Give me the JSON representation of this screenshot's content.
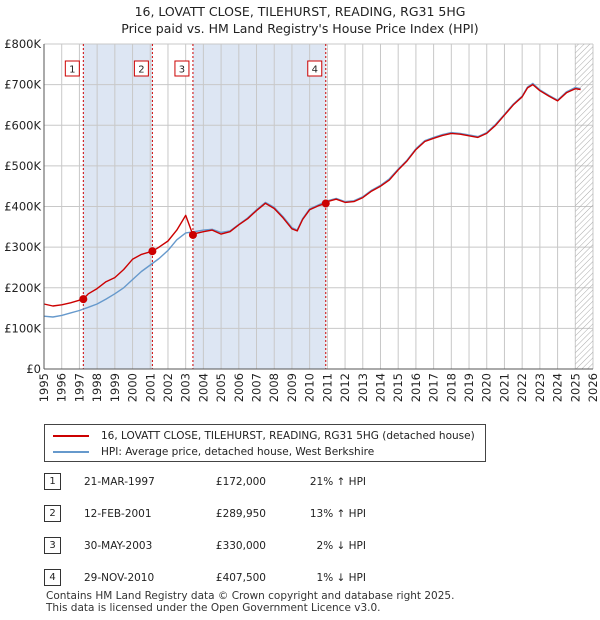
{
  "title": {
    "line1": "16, LOVATT CLOSE, TILEHURST, READING, RG31 5HG",
    "line2": "Price paid vs. HM Land Registry's House Price Index (HPI)"
  },
  "colors": {
    "property": "#cc0000",
    "hpi": "#6699cc",
    "shade": "#dde6f3",
    "grid": "#c8c8c8"
  },
  "legend": {
    "property_label": "16, LOVATT CLOSE, TILEHURST, READING, RG31 5HG (detached house)",
    "hpi_label": "HPI: Average price, detached house, West Berkshire"
  },
  "sales": [
    {
      "num": "1",
      "date": "21-MAR-1997",
      "price": "£172,000",
      "hpi": "21% ↑ HPI"
    },
    {
      "num": "2",
      "date": "12-FEB-2001",
      "price": "£289,950",
      "hpi": "13% ↑ HPI"
    },
    {
      "num": "3",
      "date": "30-MAY-2003",
      "price": "£330,000",
      "hpi": "2% ↓ HPI"
    },
    {
      "num": "4",
      "date": "29-NOV-2010",
      "price": "£407,500",
      "hpi": "1% ↓ HPI"
    }
  ],
  "footer": {
    "line1": "Contains HM Land Registry data © Crown copyright and database right 2025.",
    "line2": "This data is licensed under the Open Government Licence v3.0."
  },
  "chart_data": {
    "type": "line",
    "xlim": [
      1995,
      2026
    ],
    "ylim": [
      0,
      800000
    ],
    "x_ticks": [
      1995,
      1996,
      1997,
      1998,
      1999,
      2000,
      2001,
      2002,
      2003,
      2004,
      2005,
      2006,
      2007,
      2008,
      2009,
      2010,
      2011,
      2012,
      2013,
      2014,
      2015,
      2016,
      2017,
      2018,
      2019,
      2020,
      2021,
      2022,
      2023,
      2024,
      2025,
      2026
    ],
    "y_ticks": [
      {
        "value": 0,
        "label": "£0"
      },
      {
        "value": 100000,
        "label": "£100K"
      },
      {
        "value": 200000,
        "label": "£200K"
      },
      {
        "value": 300000,
        "label": "£300K"
      },
      {
        "value": 400000,
        "label": "£400K"
      },
      {
        "value": 500000,
        "label": "£500K"
      },
      {
        "value": 600000,
        "label": "£600K"
      },
      {
        "value": 700000,
        "label": "£700K"
      },
      {
        "value": 800000,
        "label": "£800K"
      }
    ],
    "shaded_ranges": [
      [
        1997.22,
        2001.12
      ],
      [
        2003.41,
        2010.91
      ]
    ],
    "hatched_from": 2025.0,
    "sale_markers": [
      {
        "label": "1",
        "x": 1997.22,
        "y": 172000
      },
      {
        "label": "2",
        "x": 2001.12,
        "y": 289950
      },
      {
        "label": "3",
        "x": 2003.41,
        "y": 330000
      },
      {
        "label": "4",
        "x": 2010.91,
        "y": 407500
      }
    ],
    "series": [
      {
        "name": "16, LOVATT CLOSE, TILEHURST, READING, RG31 5HG (detached house)",
        "x": [
          1995,
          1995.5,
          1996,
          1996.5,
          1997.22,
          1997.5,
          1998,
          1998.5,
          1999,
          1999.5,
          2000,
          2000.5,
          2001.12,
          2001.5,
          2002,
          2002.5,
          2003,
          2003.41,
          2003.6,
          2004,
          2004.5,
          2005,
          2005.5,
          2006,
          2006.5,
          2007,
          2007.5,
          2008,
          2008.5,
          2009,
          2009.3,
          2009.6,
          2010,
          2010.5,
          2010.91,
          2011,
          2011.5,
          2012,
          2012.5,
          2013,
          2013.5,
          2014,
          2014.5,
          2015,
          2015.5,
          2016,
          2016.5,
          2017,
          2017.5,
          2018,
          2018.5,
          2019,
          2019.5,
          2020,
          2020.5,
          2021,
          2021.5,
          2022,
          2022.3,
          2022.6,
          2023,
          2023.5,
          2024,
          2024.5,
          2025,
          2025.3
        ],
        "values": [
          160000,
          155000,
          158000,
          163000,
          172000,
          185000,
          198000,
          215000,
          225000,
          245000,
          270000,
          282000,
          289950,
          300000,
          315000,
          342000,
          378000,
          330000,
          334000,
          338000,
          342000,
          332000,
          338000,
          355000,
          370000,
          390000,
          408000,
          395000,
          372000,
          345000,
          340000,
          368000,
          392000,
          402000,
          407500,
          412000,
          418000,
          410000,
          412000,
          422000,
          438000,
          450000,
          465000,
          490000,
          512000,
          540000,
          560000,
          568000,
          575000,
          580000,
          578000,
          574000,
          570000,
          580000,
          600000,
          625000,
          650000,
          670000,
          692000,
          700000,
          685000,
          672000,
          660000,
          680000,
          690000,
          688000
        ]
      },
      {
        "name": "HPI: Average price, detached house, West Berkshire",
        "x": [
          1995,
          1995.5,
          1996,
          1996.5,
          1997,
          1997.5,
          1998,
          1998.5,
          1999,
          1999.5,
          2000,
          2000.5,
          2001,
          2001.5,
          2002,
          2002.5,
          2003,
          2003.5,
          2004,
          2004.5,
          2005,
          2005.5,
          2006,
          2006.5,
          2007,
          2007.5,
          2008,
          2008.5,
          2009,
          2009.3,
          2009.6,
          2010,
          2010.5,
          2011,
          2011.5,
          2012,
          2012.5,
          2013,
          2013.5,
          2014,
          2014.5,
          2015,
          2015.5,
          2016,
          2016.5,
          2017,
          2017.5,
          2018,
          2018.5,
          2019,
          2019.5,
          2020,
          2020.5,
          2021,
          2021.5,
          2022,
          2022.3,
          2022.6,
          2023,
          2023.5,
          2024,
          2024.5,
          2025,
          2025.3
        ],
        "values": [
          130000,
          128000,
          132000,
          138000,
          144000,
          152000,
          160000,
          172000,
          185000,
          200000,
          220000,
          240000,
          256000,
          272000,
          292000,
          318000,
          335000,
          338000,
          342000,
          344000,
          336000,
          340000,
          356000,
          372000,
          392000,
          410000,
          398000,
          375000,
          348000,
          342000,
          370000,
          394000,
          404000,
          414000,
          420000,
          412000,
          414000,
          424000,
          440000,
          452000,
          468000,
          492000,
          514000,
          542000,
          562000,
          570000,
          577000,
          582000,
          580000,
          576000,
          572000,
          582000,
          602000,
          627000,
          652000,
          672000,
          694000,
          703000,
          687000,
          674000,
          662000,
          682000,
          693000,
          690000
        ]
      }
    ]
  }
}
